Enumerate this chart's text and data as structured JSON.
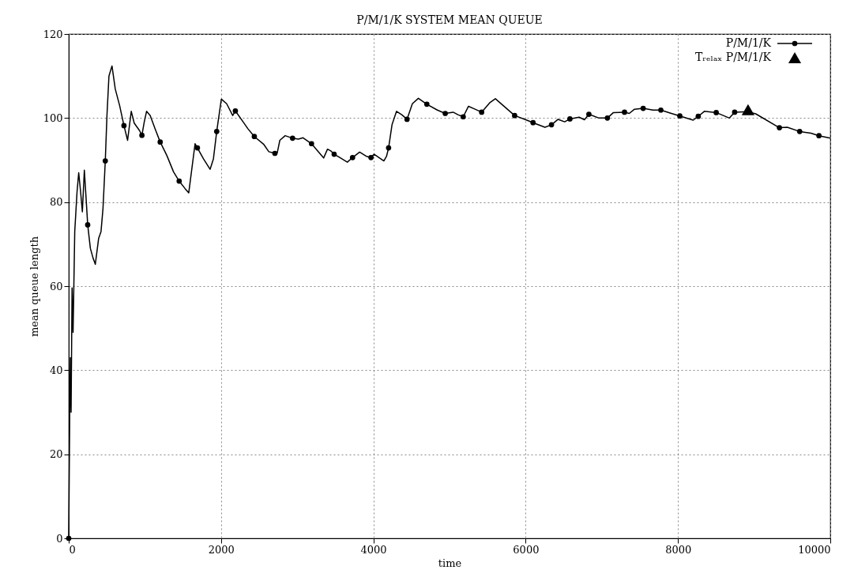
{
  "chart_data": {
    "type": "line",
    "title": "P/M/1/K SYSTEM MEAN QUEUE",
    "xlabel": "time",
    "ylabel": "mean queue length",
    "xlim": [
      0,
      10000
    ],
    "xticks": [
      0,
      2000,
      4000,
      6000,
      8000,
      10000
    ],
    "ylim": [
      0,
      120
    ],
    "yticks": [
      0,
      20,
      40,
      60,
      80,
      100,
      120
    ],
    "grid": true,
    "legend": "top right",
    "line_style": "solid",
    "series": [
      {
        "name": "P/M/1/K",
        "marker": "none",
        "color": "#000000",
        "x": [
          0,
          13,
          22,
          31,
          44,
          57,
          79,
          109,
          131,
          153,
          179,
          205,
          231,
          249,
          284,
          319,
          349,
          393,
          424,
          450,
          480,
          502,
          528,
          568,
          611,
          668,
          725,
          773,
          821,
          860,
          930,
          961,
          991,
          1022,
          1070,
          1135,
          1201,
          1288,
          1376,
          1450,
          1528,
          1576,
          1659,
          1690,
          1769,
          1856,
          1900,
          1943,
          2004,
          2074,
          2153,
          2188,
          2293,
          2351,
          2437,
          2558,
          2627,
          2707,
          2738,
          2772,
          2842,
          2939,
          3015,
          3077,
          3188,
          3267,
          3347,
          3398,
          3440,
          3485,
          3561,
          3658,
          3727,
          3820,
          3907,
          3969,
          4010,
          4138,
          4173,
          4200,
          4245,
          4304,
          4373,
          4442,
          4512,
          4591,
          4702,
          4840,
          4944,
          5048,
          5111,
          5180,
          5249,
          5324,
          5422,
          5526,
          5602,
          5855,
          6028,
          6097,
          6253,
          6339,
          6426,
          6512,
          6581,
          6702,
          6772,
          6830,
          6962,
          7073,
          7152,
          7298,
          7360,
          7429,
          7543,
          7671,
          7775,
          7913,
          8024,
          8200,
          8266,
          8346,
          8502,
          8675,
          8744,
          8920,
          9021,
          9332,
          9436,
          9598,
          9747,
          9851,
          10000
        ],
        "values": [
          0,
          29.6,
          43,
          30,
          59.6,
          49,
          73,
          82.4,
          87,
          83,
          77.7,
          87.6,
          80,
          74.6,
          69,
          66.7,
          65.2,
          71.4,
          73,
          78.5,
          89.8,
          100.6,
          110,
          112.4,
          106.9,
          103,
          98.2,
          94.7,
          101.6,
          98.8,
          97,
          95.9,
          99,
          101.6,
          100.6,
          97.4,
          94.3,
          91.1,
          87.2,
          85,
          83.2,
          82.2,
          93.9,
          92.9,
          90.3,
          87.8,
          90.3,
          96.8,
          104.5,
          103.4,
          100.6,
          101.7,
          99,
          97.5,
          95.6,
          93.8,
          92,
          91.6,
          91.7,
          94.7,
          95.8,
          95.2,
          95,
          95.3,
          93.9,
          92.2,
          90.5,
          92.6,
          92.2,
          91.4,
          90.6,
          89.5,
          90.6,
          91.9,
          90.9,
          90.6,
          91.4,
          89.8,
          90.9,
          92.9,
          98.4,
          101.6,
          100.8,
          99.7,
          103.4,
          104.7,
          103.3,
          101.9,
          101.1,
          101.4,
          100.8,
          100.3,
          102.8,
          102.2,
          101.4,
          103.6,
          104.6,
          100.6,
          99.4,
          98.9,
          97.8,
          98.4,
          99.7,
          99.1,
          99.8,
          100.2,
          99.6,
          100.9,
          100,
          100,
          101.3,
          101.4,
          101.1,
          102.1,
          102.3,
          101.9,
          101.9,
          101.1,
          100.5,
          99.5,
          100.4,
          101.6,
          101.3,
          100,
          101.4,
          101.5,
          101,
          97.7,
          97.8,
          96.8,
          96.4,
          95.8,
          95.2
        ]
      },
      {
        "type": "scatter",
        "marker": "circle",
        "color": "#000000",
        "x": [
          0,
          249,
          480,
          725,
          961,
          1201,
          1450,
          1690,
          1943,
          2188,
          2437,
          2707,
          2939,
          3188,
          3485,
          3727,
          3969,
          4200,
          4442,
          4702,
          4944,
          5180,
          5422,
          5855,
          6097,
          6339,
          6581,
          6830,
          7073,
          7298,
          7543,
          7775,
          8024,
          8266,
          8502,
          8744,
          9332,
          9598,
          9851
        ],
        "values": [
          0,
          74.6,
          89.8,
          98.2,
          95.9,
          94.3,
          85,
          92.9,
          96.8,
          101.7,
          95.6,
          91.6,
          95.2,
          93.9,
          91.4,
          90.6,
          90.6,
          92.9,
          99.7,
          103.3,
          101.1,
          100.3,
          101.4,
          100.6,
          98.9,
          98.4,
          99.8,
          100.9,
          100,
          101.4,
          102.3,
          101.9,
          100.5,
          100.4,
          101.3,
          101.4,
          97.7,
          96.8,
          95.8
        ]
      },
      {
        "name": "Tᵣₑₗₐₓ P/M/1/K",
        "type": "scatter",
        "marker": "triangle",
        "color": "#000000",
        "x": [
          8920
        ],
        "values": [
          102
        ]
      }
    ]
  }
}
